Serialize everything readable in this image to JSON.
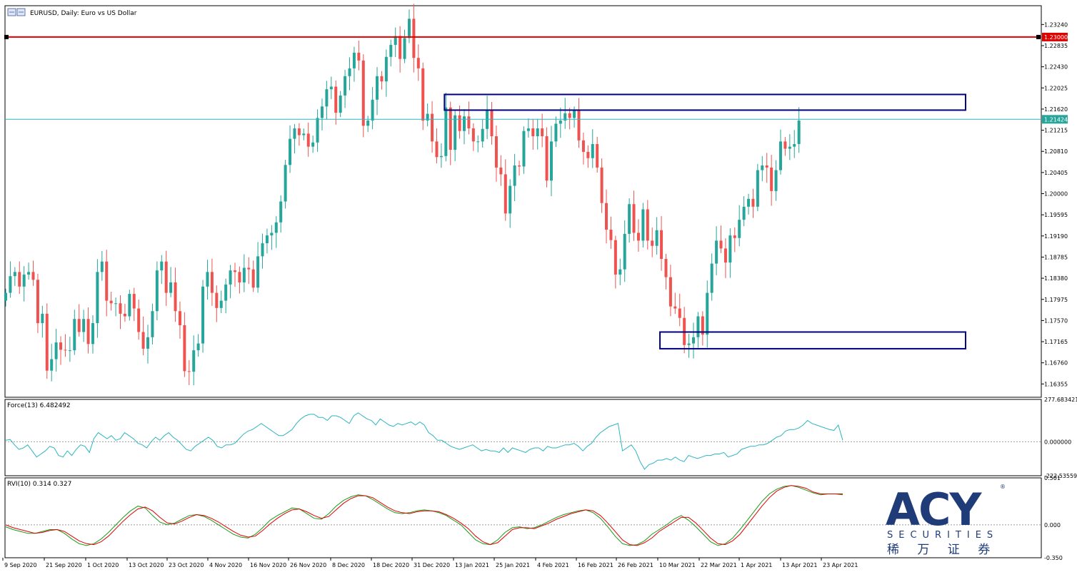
{
  "header": {
    "title": "EURUSD, Daily:  Euro vs US Dollar"
  },
  "colors": {
    "bull": "#26a69a",
    "bear": "#ef5350",
    "resistance": "#e00000",
    "zone": "#000080",
    "force": "#2bb5c0",
    "rvi_main": "#1a9a1a",
    "rvi_signal": "#e00000",
    "logo": "#1f3c78"
  },
  "logo": {
    "brand": "ACY",
    "sub": "SECURITIES",
    "cn": "稀 万 证 券"
  },
  "chart_data": [
    {
      "type": "candlestick",
      "symbol": "EURUSD",
      "timeframe": "Daily",
      "ylim": [
        1.161,
        1.236
      ],
      "y_ticks": [
        "1.23240",
        "1.22835",
        "1.22430",
        "1.22025",
        "1.21620",
        "1.21215",
        "1.20810",
        "1.20405",
        "1.20000",
        "1.19595",
        "1.19190",
        "1.18785",
        "1.18380",
        "1.17975",
        "1.17570",
        "1.17165",
        "1.16760",
        "1.16355"
      ],
      "x_ticks": [
        "9 Sep 2020",
        "21 Sep 2020",
        "1 Oct 2020",
        "13 Oct 2020",
        "23 Oct 2020",
        "4 Nov 2020",
        "16 Nov 2020",
        "26 Nov 2020",
        "8 Dec 2020",
        "18 Dec 2020",
        "31 Dec 2020",
        "13 Jan 2021",
        "25 Jan 2021",
        "4 Feb 2021",
        "16 Feb 2021",
        "26 Feb 2021",
        "10 Mar 2021",
        "22 Mar 2021",
        "1 Apr 2021",
        "13 Apr 2021",
        "23 Apr 2021"
      ],
      "closes": [
        1.181,
        1.1842,
        1.185,
        1.1822,
        1.1845,
        1.185,
        1.1835,
        1.1752,
        1.177,
        1.1661,
        1.1683,
        1.1715,
        1.1701,
        1.17,
        1.17,
        1.176,
        1.1735,
        1.176,
        1.1712,
        1.1752,
        1.185,
        1.187,
        1.1795,
        1.179,
        1.179,
        1.177,
        1.1765,
        1.1808,
        1.178,
        1.1735,
        1.1703,
        1.1725,
        1.1775,
        1.1853,
        1.187,
        1.181,
        1.183,
        1.1775,
        1.1748,
        1.166,
        1.1659,
        1.17,
        1.1713,
        1.1822,
        1.185,
        1.181,
        1.1781,
        1.1795,
        1.1826,
        1.1853,
        1.185,
        1.183,
        1.1858,
        1.1855,
        1.182,
        1.188,
        1.1905,
        1.192,
        1.1925,
        1.1945,
        1.1985,
        1.2055,
        1.2105,
        1.2125,
        1.2112,
        1.2115,
        1.209,
        1.2098,
        1.2145,
        1.2167,
        1.22,
        1.2205,
        1.2155,
        1.2188,
        1.2225,
        1.224,
        1.227,
        1.2255,
        1.213,
        1.214,
        1.218,
        1.2225,
        1.2215,
        1.2262,
        1.2285,
        1.2302,
        1.2258,
        1.2298,
        1.2335,
        1.226,
        1.224,
        1.214,
        1.2153,
        1.21,
        1.207,
        1.2072,
        1.2165,
        1.2084,
        1.215,
        1.212,
        1.2148,
        1.2125,
        1.21,
        1.21,
        1.2124,
        1.216,
        1.211,
        1.205,
        1.2037,
        1.1962,
        1.2015,
        1.2054,
        1.2052,
        1.212,
        1.2125,
        1.211,
        1.2125,
        1.211,
        1.2025,
        1.21,
        1.2134,
        1.214,
        1.2154,
        1.2145,
        1.2159,
        1.2102,
        1.208,
        1.2068,
        1.2095,
        1.205,
        1.1982,
        1.1931,
        1.1911,
        1.1845,
        1.1855,
        1.1923,
        1.198,
        1.1925,
        1.191,
        1.197,
        1.191,
        1.19,
        1.193,
        1.1875,
        1.184,
        1.1784,
        1.178,
        1.1762,
        1.171,
        1.1713,
        1.1725,
        1.1765,
        1.173,
        1.181,
        1.1866,
        1.191,
        1.1895,
        1.1868,
        1.192,
        1.1915,
        1.195,
        1.1975,
        1.199,
        1.1975,
        1.2045,
        1.2054,
        1.205,
        1.2005,
        1.2045,
        1.21,
        1.2086,
        1.209,
        1.2095,
        1.214
      ]
    },
    {
      "type": "line",
      "title": "Force(13) 6.482492",
      "ylim": [
        -222.535594,
        277.683421
      ],
      "y_ticks": [
        "277.683421",
        "0.000000",
        "-222.535594"
      ],
      "values": [
        10,
        15,
        -20,
        -50,
        -40,
        -20,
        -60,
        -100,
        -80,
        -60,
        -30,
        -40,
        -90,
        -100,
        -60,
        -90,
        -50,
        -20,
        -30,
        -70,
        20,
        60,
        40,
        20,
        40,
        10,
        20,
        60,
        40,
        20,
        -10,
        -20,
        -40,
        0,
        30,
        10,
        40,
        60,
        30,
        10,
        -20,
        -50,
        -60,
        -30,
        -10,
        10,
        30,
        10,
        -30,
        -40,
        -20,
        -20,
        -10,
        20,
        50,
        70,
        80,
        100,
        120,
        100,
        80,
        60,
        40,
        40,
        60,
        80,
        120,
        150,
        170,
        180,
        180,
        160,
        160,
        140,
        170,
        170,
        160,
        140,
        120,
        170,
        190,
        170,
        150,
        140,
        110,
        150,
        130,
        110,
        100,
        120,
        110,
        120,
        130,
        110,
        130,
        110,
        60,
        40,
        10,
        10,
        -10,
        -30,
        -40,
        -50,
        -40,
        -30,
        -20,
        -40,
        -60,
        -50,
        -60,
        -60,
        -70,
        -40,
        -70,
        -40,
        -50,
        -60,
        -70,
        -50,
        -40,
        -40,
        -60,
        -30,
        -40,
        -40,
        -30,
        -20,
        -20,
        -10,
        -30,
        -60,
        -30,
        -10,
        30,
        60,
        80,
        100,
        110,
        120,
        -60,
        -40,
        -20,
        -60,
        -130,
        -180,
        -150,
        -140,
        -120,
        -120,
        -110,
        -120,
        -100,
        -120,
        -130,
        -90,
        -100,
        -110,
        -100,
        -90,
        -90,
        -80,
        -80,
        -70,
        -100,
        -90,
        -80,
        -50,
        -40,
        -30,
        -30,
        -20,
        -20,
        -10,
        10,
        30,
        40,
        70,
        80,
        80,
        90,
        110,
        140,
        120,
        110,
        100,
        90,
        80,
        75,
        110,
        10
      ]
    },
    {
      "type": "line",
      "title": "RVI(10) 0.314 0.327",
      "ylim": [
        -0.35,
        0.501
      ],
      "y_ticks": [
        "0.501",
        "0.000",
        "-0.350"
      ],
      "series": [
        {
          "values": [
            -0.02,
            -0.05,
            -0.07,
            -0.09,
            -0.09,
            -0.07,
            -0.05,
            -0.05,
            -0.09,
            -0.15,
            -0.2,
            -0.22,
            -0.2,
            -0.15,
            -0.08,
            0.0,
            0.08,
            0.15,
            0.2,
            0.18,
            0.1,
            0.03,
            0.0,
            0.02,
            0.06,
            0.1,
            0.11,
            0.09,
            0.05,
            0.0,
            -0.05,
            -0.1,
            -0.13,
            -0.14,
            -0.1,
            -0.03,
            0.05,
            0.1,
            0.14,
            0.18,
            0.17,
            0.12,
            0.07,
            0.06,
            0.12,
            0.2,
            0.26,
            0.3,
            0.32,
            0.31,
            0.27,
            0.22,
            0.17,
            0.13,
            0.12,
            0.13,
            0.15,
            0.16,
            0.15,
            0.13,
            0.1,
            0.05,
            0.0,
            -0.08,
            -0.16,
            -0.2,
            -0.21,
            -0.16,
            -0.08,
            -0.03,
            -0.02,
            -0.04,
            -0.03,
            0.0,
            0.04,
            0.08,
            0.11,
            0.13,
            0.15,
            0.16,
            0.13,
            0.07,
            -0.02,
            -0.12,
            -0.2,
            -0.22,
            -0.21,
            -0.17,
            -0.1,
            -0.05,
            0.0,
            0.06,
            0.1,
            0.05,
            -0.02,
            -0.1,
            -0.18,
            -0.22,
            -0.2,
            -0.14,
            -0.05,
            0.05,
            0.15,
            0.25,
            0.33,
            0.38,
            0.41,
            0.42,
            0.4,
            0.37,
            0.34,
            0.32,
            0.33,
            0.33,
            0.32
          ]
        },
        {
          "values": [
            0.0,
            -0.03,
            -0.05,
            -0.07,
            -0.09,
            -0.08,
            -0.06,
            -0.05,
            -0.07,
            -0.12,
            -0.17,
            -0.2,
            -0.21,
            -0.18,
            -0.12,
            -0.04,
            0.04,
            0.11,
            0.17,
            0.19,
            0.15,
            0.08,
            0.02,
            0.01,
            0.04,
            0.08,
            0.11,
            0.1,
            0.07,
            0.03,
            -0.02,
            -0.07,
            -0.11,
            -0.13,
            -0.12,
            -0.06,
            0.01,
            0.07,
            0.12,
            0.16,
            0.17,
            0.14,
            0.1,
            0.07,
            0.09,
            0.16,
            0.23,
            0.28,
            0.31,
            0.31,
            0.29,
            0.24,
            0.19,
            0.15,
            0.13,
            0.12,
            0.14,
            0.15,
            0.15,
            0.14,
            0.11,
            0.07,
            0.02,
            -0.04,
            -0.12,
            -0.18,
            -0.21,
            -0.19,
            -0.12,
            -0.05,
            -0.03,
            -0.03,
            -0.04,
            -0.01,
            0.02,
            0.06,
            0.09,
            0.12,
            0.14,
            0.16,
            0.15,
            0.1,
            0.02,
            -0.07,
            -0.16,
            -0.21,
            -0.22,
            -0.19,
            -0.14,
            -0.07,
            -0.02,
            0.03,
            0.08,
            0.08,
            0.02,
            -0.06,
            -0.14,
            -0.2,
            -0.21,
            -0.17,
            -0.1,
            0.0,
            0.1,
            0.2,
            0.29,
            0.36,
            0.4,
            0.42,
            0.41,
            0.39,
            0.35,
            0.33,
            0.33,
            0.33,
            0.33
          ]
        }
      ]
    }
  ],
  "annotations": {
    "current_price": "1.21424",
    "resistance_label": "1.23000",
    "resistance_level": 1.23,
    "current_level": 1.21424,
    "zones": [
      {
        "from_index": 96,
        "to_date_index": 190,
        "y_top": 1.219,
        "y_bottom": 1.216
      },
      {
        "from_index": 143,
        "to_date_index": 190,
        "y_top": 1.1735,
        "y_bottom": 1.1703
      }
    ]
  }
}
